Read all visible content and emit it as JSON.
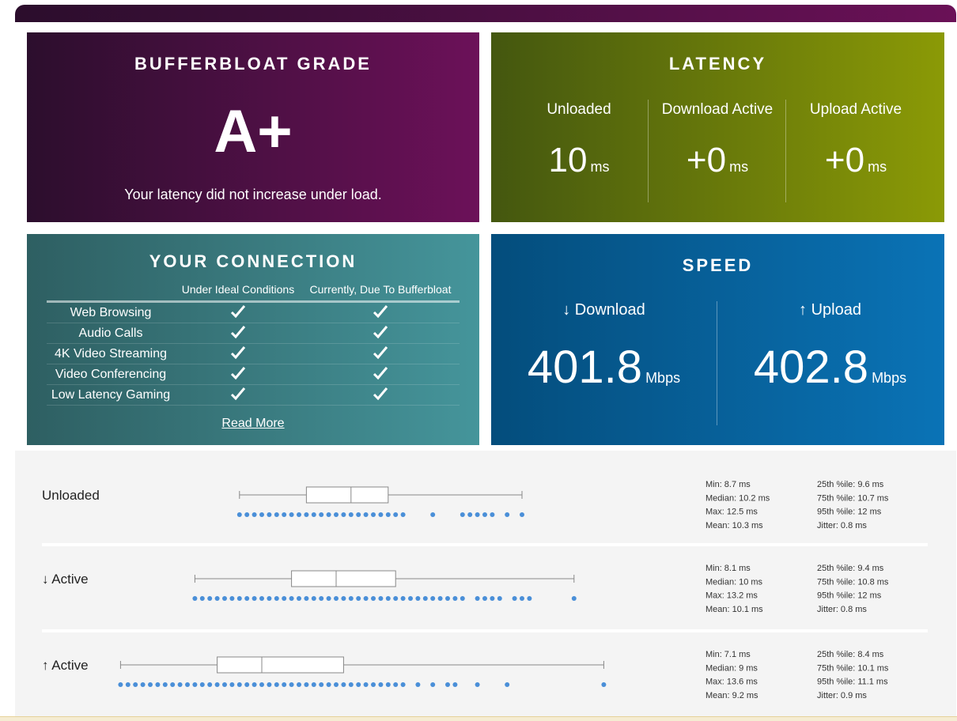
{
  "grade": {
    "title": "BUFFERBLOAT GRADE",
    "value": "A+",
    "description": "Your latency did not increase under load."
  },
  "latency": {
    "title": "LATENCY",
    "columns": [
      {
        "label": "Unloaded",
        "value": "10",
        "unit": "ms"
      },
      {
        "label": "Download Active",
        "value": "+0",
        "unit": "ms"
      },
      {
        "label": "Upload Active",
        "value": "+0",
        "unit": "ms"
      }
    ]
  },
  "connection": {
    "title": "YOUR CONNECTION",
    "headers": [
      "Under Ideal Conditions",
      "Currently, Due To Bufferbloat"
    ],
    "rows": [
      {
        "name": "Web Browsing",
        "ideal": true,
        "current": true
      },
      {
        "name": "Audio Calls",
        "ideal": true,
        "current": true
      },
      {
        "name": "4K Video Streaming",
        "ideal": true,
        "current": true
      },
      {
        "name": "Video Conferencing",
        "ideal": true,
        "current": true
      },
      {
        "name": "Low Latency Gaming",
        "ideal": true,
        "current": true
      }
    ],
    "link": "Read More"
  },
  "speed": {
    "title": "SPEED",
    "columns": [
      {
        "label": "↓ Download",
        "value": 401.8,
        "unit": "Mbps"
      },
      {
        "label": "↑ Upload",
        "value": 402.8,
        "unit": "Mbps"
      }
    ]
  },
  "distributions": [
    {
      "label": "Unloaded",
      "unit": "ms",
      "min": {
        "label": "Min:",
        "value": 8.7
      },
      "median": {
        "label": "Median:",
        "value": 10.2
      },
      "max": {
        "label": "Max:",
        "value": 12.5
      },
      "mean": {
        "label": "Mean:",
        "value": 10.3
      },
      "p25": {
        "label": "25th %ile:",
        "value": 9.6
      },
      "p75": {
        "label": "75th %ile:",
        "value": 10.7
      },
      "p95": {
        "label": "95th %ile:",
        "value": 12
      },
      "jitter": {
        "label": "Jitter:",
        "value": 0.8
      },
      "samples": [
        8.7,
        8.8,
        8.9,
        9.0,
        9.1,
        9.2,
        9.3,
        9.4,
        9.5,
        9.6,
        9.7,
        9.8,
        9.9,
        10.0,
        10.1,
        10.2,
        10.3,
        10.4,
        10.5,
        10.6,
        10.7,
        10.8,
        10.9,
        11.3,
        11.7,
        11.8,
        11.9,
        12.0,
        12.1,
        12.3,
        12.5
      ]
    },
    {
      "label": "↓ Active",
      "unit": "ms",
      "min": {
        "label": "Min:",
        "value": 8.1
      },
      "median": {
        "label": "Median:",
        "value": 10
      },
      "max": {
        "label": "Max:",
        "value": 13.2
      },
      "mean": {
        "label": "Mean:",
        "value": 10.1
      },
      "p25": {
        "label": "25th %ile:",
        "value": 9.4
      },
      "p75": {
        "label": "75th %ile:",
        "value": 10.8
      },
      "p95": {
        "label": "95th %ile:",
        "value": 12
      },
      "jitter": {
        "label": "Jitter:",
        "value": 0.8
      },
      "samples": [
        8.1,
        8.2,
        8.3,
        8.4,
        8.5,
        8.6,
        8.7,
        8.8,
        8.9,
        9.0,
        9.1,
        9.2,
        9.3,
        9.4,
        9.5,
        9.6,
        9.7,
        9.8,
        9.9,
        10.0,
        10.1,
        10.2,
        10.3,
        10.4,
        10.5,
        10.6,
        10.7,
        10.8,
        10.9,
        11.0,
        11.1,
        11.2,
        11.3,
        11.4,
        11.5,
        11.6,
        11.7,
        11.9,
        12.0,
        12.1,
        12.2,
        12.4,
        12.5,
        12.6,
        13.2
      ]
    },
    {
      "label": "↑ Active",
      "unit": "ms",
      "min": {
        "label": "Min:",
        "value": 7.1
      },
      "median": {
        "label": "Median:",
        "value": 9
      },
      "max": {
        "label": "Max:",
        "value": 13.6
      },
      "mean": {
        "label": "Mean:",
        "value": 9.2
      },
      "p25": {
        "label": "25th %ile:",
        "value": 8.4
      },
      "p75": {
        "label": "75th %ile:",
        "value": 10.1
      },
      "p95": {
        "label": "95th %ile:",
        "value": 11.1
      },
      "jitter": {
        "label": "Jitter:",
        "value": 0.9
      },
      "samples": [
        7.1,
        7.2,
        7.3,
        7.4,
        7.5,
        7.6,
        7.7,
        7.8,
        7.9,
        8.0,
        8.1,
        8.2,
        8.3,
        8.4,
        8.5,
        8.6,
        8.7,
        8.8,
        8.9,
        9.0,
        9.1,
        9.2,
        9.3,
        9.4,
        9.5,
        9.6,
        9.7,
        9.8,
        9.9,
        10.0,
        10.1,
        10.2,
        10.3,
        10.4,
        10.5,
        10.6,
        10.7,
        10.8,
        10.9,
        11.1,
        11.3,
        11.5,
        11.6,
        11.9,
        12.3,
        13.6
      ]
    }
  ]
}
